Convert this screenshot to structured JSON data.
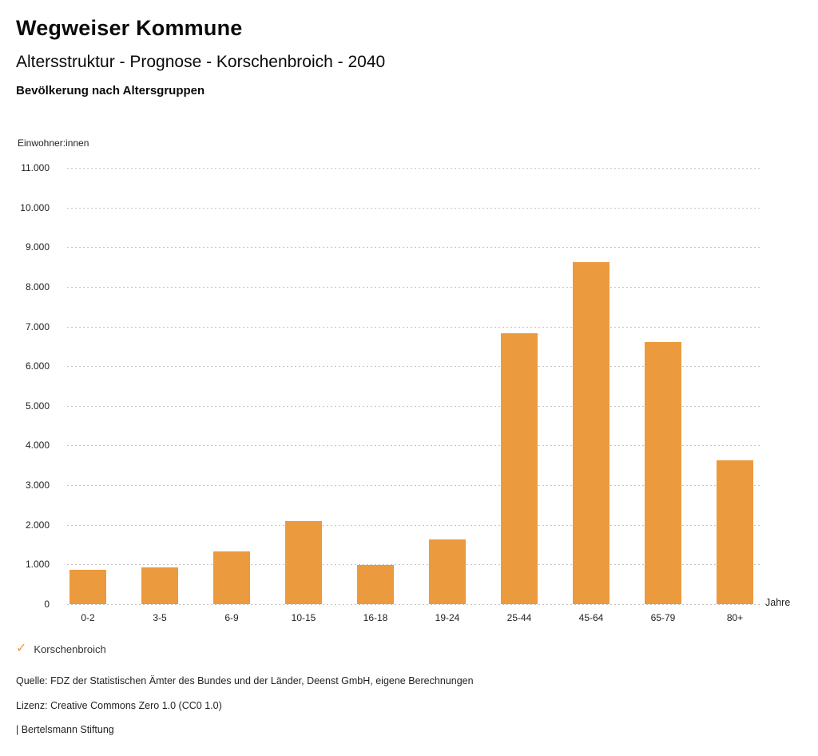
{
  "header": {
    "title": "Wegweiser Kommune",
    "subtitle": "Altersstruktur - Prognose - Korschenbroich - 2040",
    "chart_title": "Bevölkerung nach Altersgruppen"
  },
  "chart_data": {
    "type": "bar",
    "title": "Bevölkerung nach Altersgruppen",
    "categories": [
      "0-2",
      "3-5",
      "6-9",
      "10-15",
      "16-18",
      "19-24",
      "25-44",
      "45-64",
      "65-79",
      "80+"
    ],
    "series": [
      {
        "name": "Korschenbroich",
        "values": [
          860,
          920,
          1330,
          2090,
          990,
          1640,
          6830,
          8630,
          6610,
          3620
        ]
      }
    ],
    "xlabel": "Jahre",
    "ylabel": "Einwohner:innen",
    "ylim": [
      0,
      11000
    ],
    "ytick_step": 1000,
    "ytick_labels": [
      "0",
      "1.000",
      "2.000",
      "3.000",
      "4.000",
      "5.000",
      "6.000",
      "7.000",
      "8.000",
      "9.000",
      "10.000",
      "11.000"
    ],
    "grid": "horizontal-dotted",
    "legend_position": "bottom-left",
    "bar_color": "#EC9A3E",
    "grid_color": "#c4c4c4"
  },
  "legend": {
    "check_icon": "✓",
    "label": "Korschenbroich"
  },
  "footer": {
    "source": "Quelle: FDZ der Statistischen Ämter des Bundes und der Länder, Deenst GmbH, eigene Berechnungen",
    "license": "Lizenz: Creative Commons Zero 1.0 (CC0 1.0)",
    "attribution": "| Bertelsmann Stiftung"
  }
}
